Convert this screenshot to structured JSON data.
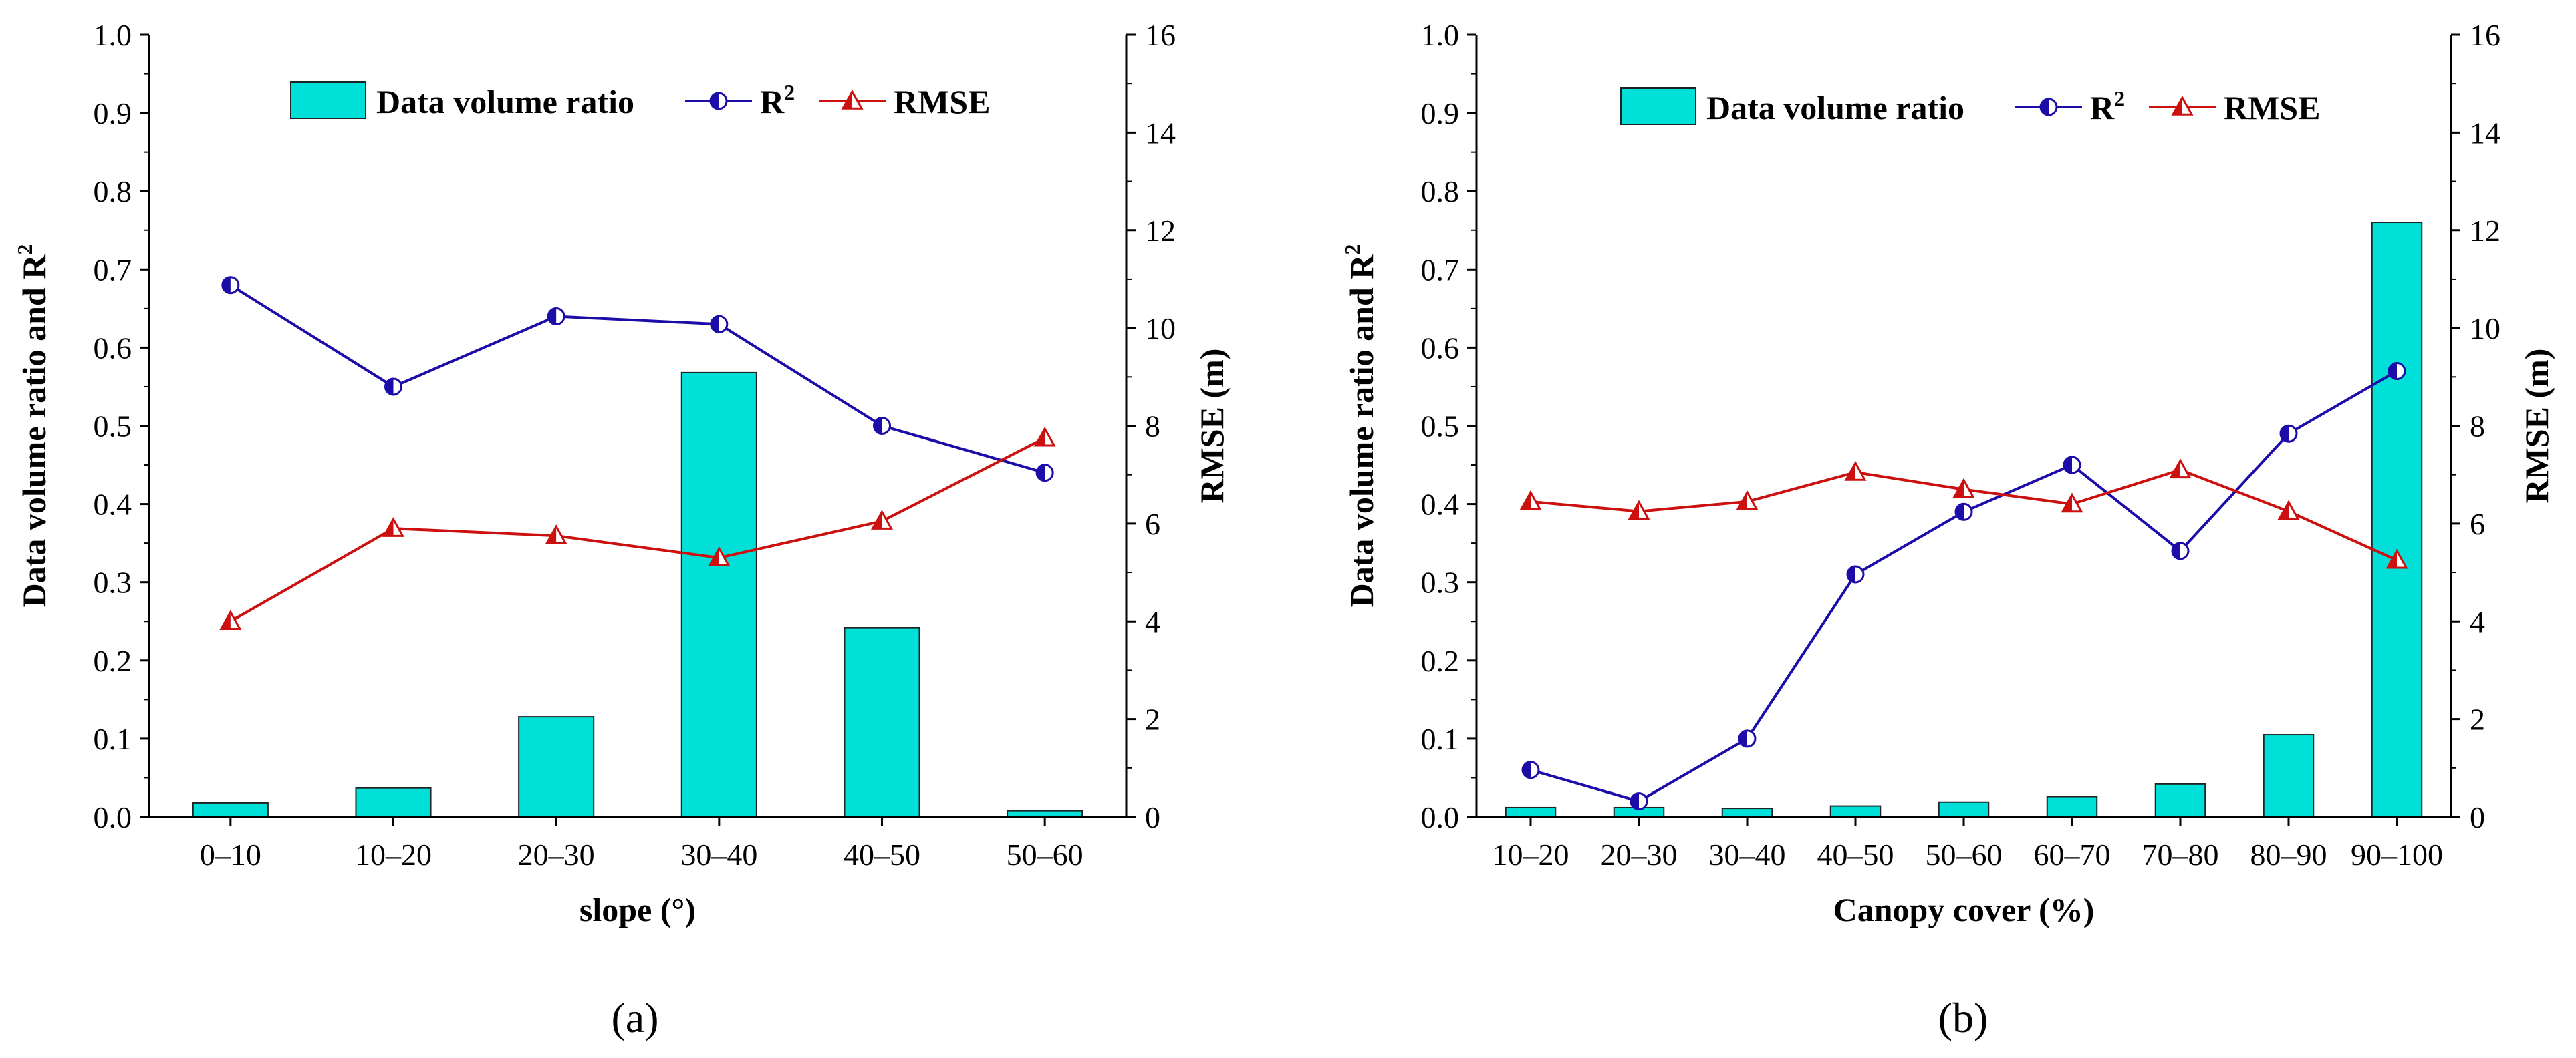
{
  "chart_data": [
    {
      "type": "bar+line",
      "panel_label": "(a)",
      "categories": [
        "0–10",
        "10–20",
        "20–30",
        "30–40",
        "40–50",
        "50–60"
      ],
      "series": [
        {
          "name": "Data volume ratio",
          "axis": "left",
          "kind": "bar",
          "color": "#00e0d8",
          "values": [
            0.018,
            0.037,
            0.128,
            0.568,
            0.242,
            0.008
          ]
        },
        {
          "name": "R",
          "sup": "2",
          "axis": "left",
          "kind": "line",
          "marker": "half-circle",
          "color": "#1c0ca8",
          "values": [
            0.68,
            0.55,
            0.64,
            0.63,
            0.5,
            0.44
          ]
        },
        {
          "name": "RMSE",
          "axis": "right",
          "kind": "line",
          "marker": "triangle",
          "color": "#cc1010",
          "values": [
            4.0,
            5.9,
            5.75,
            5.3,
            6.05,
            7.75
          ]
        }
      ],
      "xlabel": "slope (°)",
      "ylabel_left": "Data volume ratio and R",
      "ylabel_left_sup": "2",
      "ylabel_right": "RMSE (m)",
      "ylim_left": [
        0,
        1.0
      ],
      "ylim_right": [
        0,
        16
      ],
      "yticks_left": [
        "0.0",
        "0.1",
        "0.2",
        "0.3",
        "0.4",
        "0.5",
        "0.6",
        "0.7",
        "0.8",
        "0.9",
        "1.0"
      ],
      "yticks_right": [
        "0",
        "2",
        "4",
        "6",
        "8",
        "10",
        "12",
        "14",
        "16"
      ],
      "legend_position": "top-center",
      "grid": false
    },
    {
      "type": "bar+line",
      "panel_label": "(b)",
      "categories": [
        "10–20",
        "20–30",
        "30–40",
        "40–50",
        "50–60",
        "60–70",
        "70–80",
        "80–90",
        "90–100"
      ],
      "series": [
        {
          "name": "Data volume ratio",
          "axis": "left",
          "kind": "bar",
          "color": "#00e0d8",
          "values": [
            0.012,
            0.012,
            0.011,
            0.014,
            0.019,
            0.026,
            0.042,
            0.105,
            0.76
          ]
        },
        {
          "name": "R",
          "sup": "2",
          "axis": "left",
          "kind": "line",
          "marker": "half-circle",
          "color": "#1c0ca8",
          "values": [
            0.06,
            0.02,
            0.1,
            0.31,
            0.39,
            0.45,
            0.34,
            0.49,
            0.57
          ]
        },
        {
          "name": "RMSE",
          "axis": "right",
          "kind": "line",
          "marker": "triangle",
          "color": "#cc1010",
          "values": [
            6.45,
            6.25,
            6.45,
            7.05,
            6.7,
            6.4,
            7.1,
            6.25,
            5.25
          ]
        }
      ],
      "xlabel": "Canopy cover (%)",
      "ylabel_left": "Data volume ratio and R",
      "ylabel_left_sup": "2",
      "ylabel_right": "RMSE (m)",
      "ylim_left": [
        0,
        1.0
      ],
      "ylim_right": [
        0,
        16
      ],
      "yticks_left": [
        "0.0",
        "0.1",
        "0.2",
        "0.3",
        "0.4",
        "0.5",
        "0.6",
        "0.7",
        "0.8",
        "0.9",
        "1.0"
      ],
      "yticks_right": [
        "0",
        "2",
        "4",
        "6",
        "8",
        "10",
        "12",
        "14",
        "16"
      ],
      "legend_position": "top-center",
      "grid": false
    }
  ]
}
